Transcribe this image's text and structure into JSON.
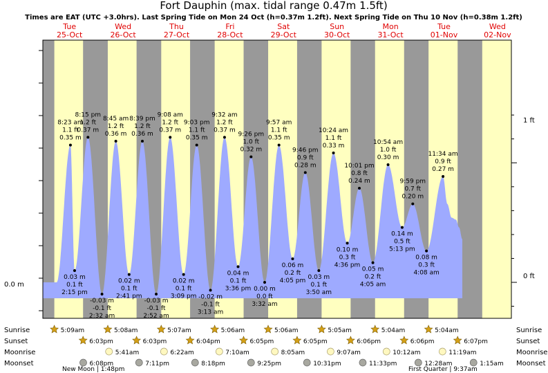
{
  "title": "Fort Dauphin (max. tidal range 0.47m 1.5ft)",
  "subtitle": "Times are EAT (UTC +3.0hrs). Last Spring Tide on Mon 24 Oct (h=0.37m 1.2ft). Next Spring Tide on Thu 10 Nov (h=0.38m 1.2ft)",
  "axis": {
    "left_label": "0.0 m",
    "right_labels": [
      "1 ft",
      "0 ft"
    ]
  },
  "row_labels": [
    "Sunrise",
    "Sunset",
    "Moonrise",
    "Moonset"
  ],
  "colors": {
    "night": "#999999",
    "day": "#ffffc0",
    "water": "#9eaaff",
    "title_red": "#e00000",
    "sun_star": "#d4a017",
    "moonrise": "#fff8c0",
    "moonset": "#a8a8a0"
  },
  "chart_data": {
    "type": "area",
    "title": "Fort Dauphin (max. tidal range 0.47m 1.5ft)",
    "days": [
      {
        "dow": "Tue",
        "date": "25-Oct"
      },
      {
        "dow": "Wed",
        "date": "26-Oct"
      },
      {
        "dow": "Thu",
        "date": "27-Oct"
      },
      {
        "dow": "Fri",
        "date": "28-Oct"
      },
      {
        "dow": "Sat",
        "date": "29-Oct"
      },
      {
        "dow": "Sun",
        "date": "30-Oct"
      },
      {
        "dow": "Mon",
        "date": "31-Oct"
      },
      {
        "dow": "Tue",
        "date": "01-Nov"
      },
      {
        "dow": "Wed",
        "date": "02-Nov"
      }
    ],
    "tides": [
      {
        "t": 0.516,
        "h": 0.35,
        "ft": "1.1 ft",
        "time": "8:23 am",
        "high": true
      },
      {
        "t": 0.5938,
        "h": 0.03,
        "ft": "0.1 ft",
        "time": "2:15 pm",
        "high": false
      },
      {
        "t": 0.8438,
        "h": 0.37,
        "ft": "1.2 ft",
        "time": "8:15 pm",
        "high": true
      },
      {
        "t": 1.1056,
        "h": -0.03,
        "ft": "-0.1 ft",
        "time": "2:32 am",
        "high": false
      },
      {
        "t": 1.3646,
        "h": 0.36,
        "ft": "1.2 ft",
        "time": "8:45 am",
        "high": true
      },
      {
        "t": 1.6125,
        "h": 0.02,
        "ft": "0.1 ft",
        "time": "2:41 pm",
        "high": false
      },
      {
        "t": 1.8604,
        "h": 0.36,
        "ft": "1.2 ft",
        "time": "8:39 pm",
        "high": true
      },
      {
        "t": 2.1194,
        "h": -0.03,
        "ft": "-0.1 ft",
        "time": "2:52 am",
        "high": false
      },
      {
        "t": 2.3806,
        "h": 0.37,
        "ft": "1.2 ft",
        "time": "9:08 am",
        "high": true
      },
      {
        "t": 2.6313,
        "h": 0.02,
        "ft": "0.1 ft",
        "time": "3:09 pm",
        "high": false
      },
      {
        "t": 2.8771,
        "h": 0.35,
        "ft": "1.1 ft",
        "time": "9:03 pm",
        "high": true
      },
      {
        "t": 3.134,
        "h": -0.02,
        "ft": "-0.1 ft",
        "time": "3:13 am",
        "high": false
      },
      {
        "t": 3.3972,
        "h": 0.37,
        "ft": "1.2 ft",
        "time": "9:32 am",
        "high": true
      },
      {
        "t": 3.65,
        "h": 0.04,
        "ft": "0.1 ft",
        "time": "3:36 pm",
        "high": false
      },
      {
        "t": 3.8931,
        "h": 0.32,
        "ft": "1.0 ft",
        "time": "9:26 pm",
        "high": true
      },
      {
        "t": 4.1472,
        "h": 0.0,
        "ft": "0.0 ft",
        "time": "3:32 am",
        "high": false
      },
      {
        "t": 4.4146,
        "h": 0.35,
        "ft": "1.1 ft",
        "time": "9:57 am",
        "high": true
      },
      {
        "t": 4.6701,
        "h": 0.06,
        "ft": "0.2 ft",
        "time": "4:05 pm",
        "high": false
      },
      {
        "t": 4.9069,
        "h": 0.28,
        "ft": "0.9 ft",
        "time": "9:46 pm",
        "high": true
      },
      {
        "t": 5.1597,
        "h": 0.03,
        "ft": "0.1 ft",
        "time": "3:50 am",
        "high": false
      },
      {
        "t": 5.4333,
        "h": 0.33,
        "ft": "1.1 ft",
        "time": "10:24 am",
        "high": true
      },
      {
        "t": 5.6917,
        "h": 0.1,
        "ft": "0.3 ft",
        "time": "4:36 pm",
        "high": false
      },
      {
        "t": 5.9174,
        "h": 0.24,
        "ft": "0.8 ft",
        "time": "10:01 pm",
        "high": true
      },
      {
        "t": 6.1701,
        "h": 0.05,
        "ft": "0.2 ft",
        "time": "4:05 am",
        "high": false
      },
      {
        "t": 6.4542,
        "h": 0.3,
        "ft": "1.0 ft",
        "time": "10:54 am",
        "high": true
      },
      {
        "t": 6.7174,
        "h": 0.14,
        "ft": "0.5 ft",
        "time": "5:13 pm",
        "high": false
      },
      {
        "t": 6.916,
        "h": 0.2,
        "ft": "0.7 ft",
        "time": "9:59 pm",
        "high": true
      },
      {
        "t": 7.1722,
        "h": 0.08,
        "ft": "0.3 ft",
        "time": "4:08 am",
        "high": false
      },
      {
        "t": 7.4819,
        "h": 0.27,
        "ft": "0.9 ft",
        "time": "11:34 am",
        "high": true
      }
    ],
    "ylim_m": [
      -0.1,
      0.44
    ],
    "ft_ticks": [
      0,
      1
    ],
    "sunrise": [
      {
        "t": 0.2146,
        "label": "5:09am"
      },
      {
        "t": 1.2139,
        "label": "5:08am"
      },
      {
        "t": 2.2132,
        "label": "5:07am"
      },
      {
        "t": 3.2125,
        "label": "5:06am"
      },
      {
        "t": 4.2125,
        "label": "5:06am"
      },
      {
        "t": 5.2118,
        "label": "5:05am"
      },
      {
        "t": 6.2111,
        "label": "5:04am"
      },
      {
        "t": 7.2111,
        "label": "5:04am"
      }
    ],
    "sunset": [
      {
        "t": 0.7521,
        "label": "6:03pm"
      },
      {
        "t": 1.7521,
        "label": "6:03pm"
      },
      {
        "t": 2.7528,
        "label": "6:04pm"
      },
      {
        "t": 3.7535,
        "label": "6:05pm"
      },
      {
        "t": 4.7535,
        "label": "6:05pm"
      },
      {
        "t": 5.7542,
        "label": "6:06pm"
      },
      {
        "t": 6.7542,
        "label": "6:06pm"
      },
      {
        "t": 7.7549,
        "label": "6:07pm"
      }
    ],
    "moonrise": [
      {
        "t": 1.2368,
        "label": "5:41am"
      },
      {
        "t": 2.2653,
        "label": "6:22am"
      },
      {
        "t": 3.2986,
        "label": "7:10am"
      },
      {
        "t": 4.3368,
        "label": "8:05am"
      },
      {
        "t": 5.3799,
        "label": "9:07am"
      },
      {
        "t": 6.425,
        "label": "10:12am"
      },
      {
        "t": 7.4715,
        "label": "11:19am"
      }
    ],
    "moonset": [
      {
        "t": 0.7556,
        "label": "6:08pm"
      },
      {
        "t": 1.7993,
        "label": "7:11pm"
      },
      {
        "t": 2.8458,
        "label": "8:18pm"
      },
      {
        "t": 3.8924,
        "label": "9:25pm"
      },
      {
        "t": 4.9382,
        "label": "10:31pm"
      },
      {
        "t": 5.9813,
        "label": "11:33pm"
      },
      {
        "t": 7.0194,
        "label": "12:28am"
      },
      {
        "t": 8.0521,
        "label": "1:15am"
      }
    ],
    "moon_phases": [
      {
        "label": "New Moon",
        "time": "1:48pm"
      },
      {
        "label": "First Quarter",
        "time": "9:37am"
      }
    ]
  }
}
